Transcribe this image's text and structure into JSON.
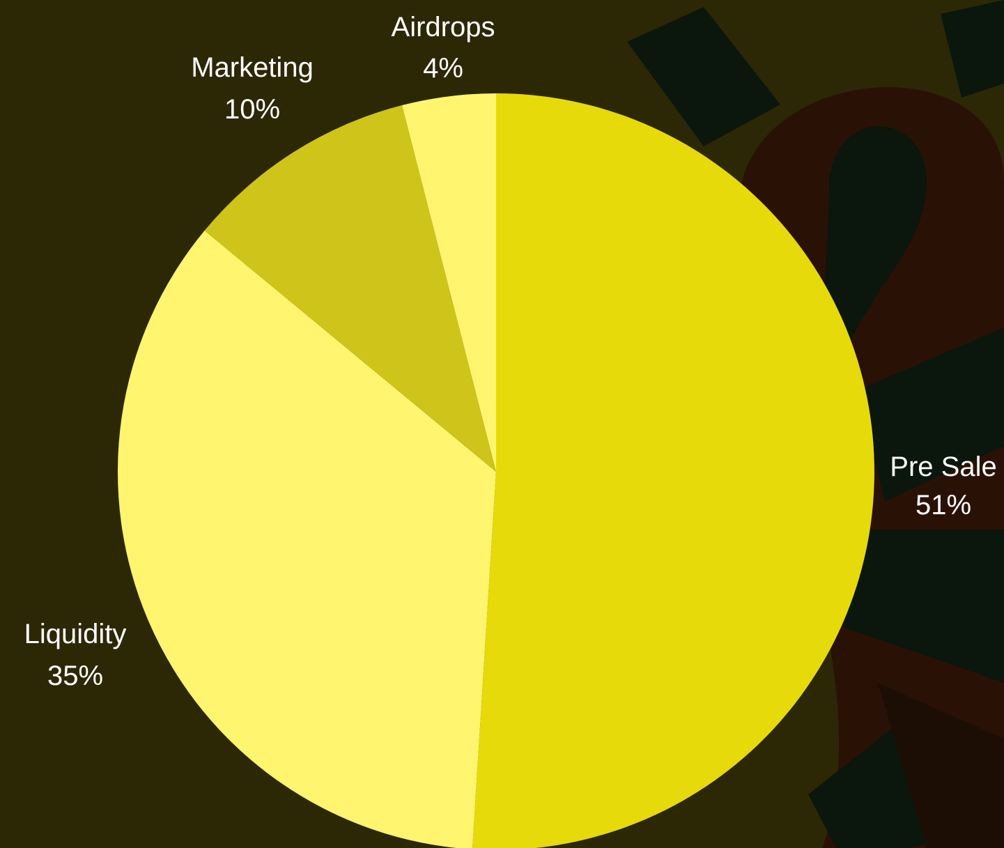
{
  "chart_data": {
    "type": "pie",
    "title": "",
    "slices": [
      {
        "label": "Pre Sale",
        "value": 51,
        "value_label": "51%",
        "color": "#e6da0a"
      },
      {
        "label": "Liquidity",
        "value": 35,
        "value_label": "35%",
        "color": "#fff56e"
      },
      {
        "label": "Marketing",
        "value": 10,
        "value_label": "10%",
        "color": "#cfc41a"
      },
      {
        "label": "Airdrops",
        "value": 4,
        "value_label": "4%",
        "color": "#fff56e"
      }
    ],
    "start_angle": "top",
    "direction": "clockwise",
    "legend": "none",
    "background_color": "#2c2806",
    "decoration_colors": [
      "#0b160c",
      "#2a1106",
      "#1d0e05"
    ]
  }
}
